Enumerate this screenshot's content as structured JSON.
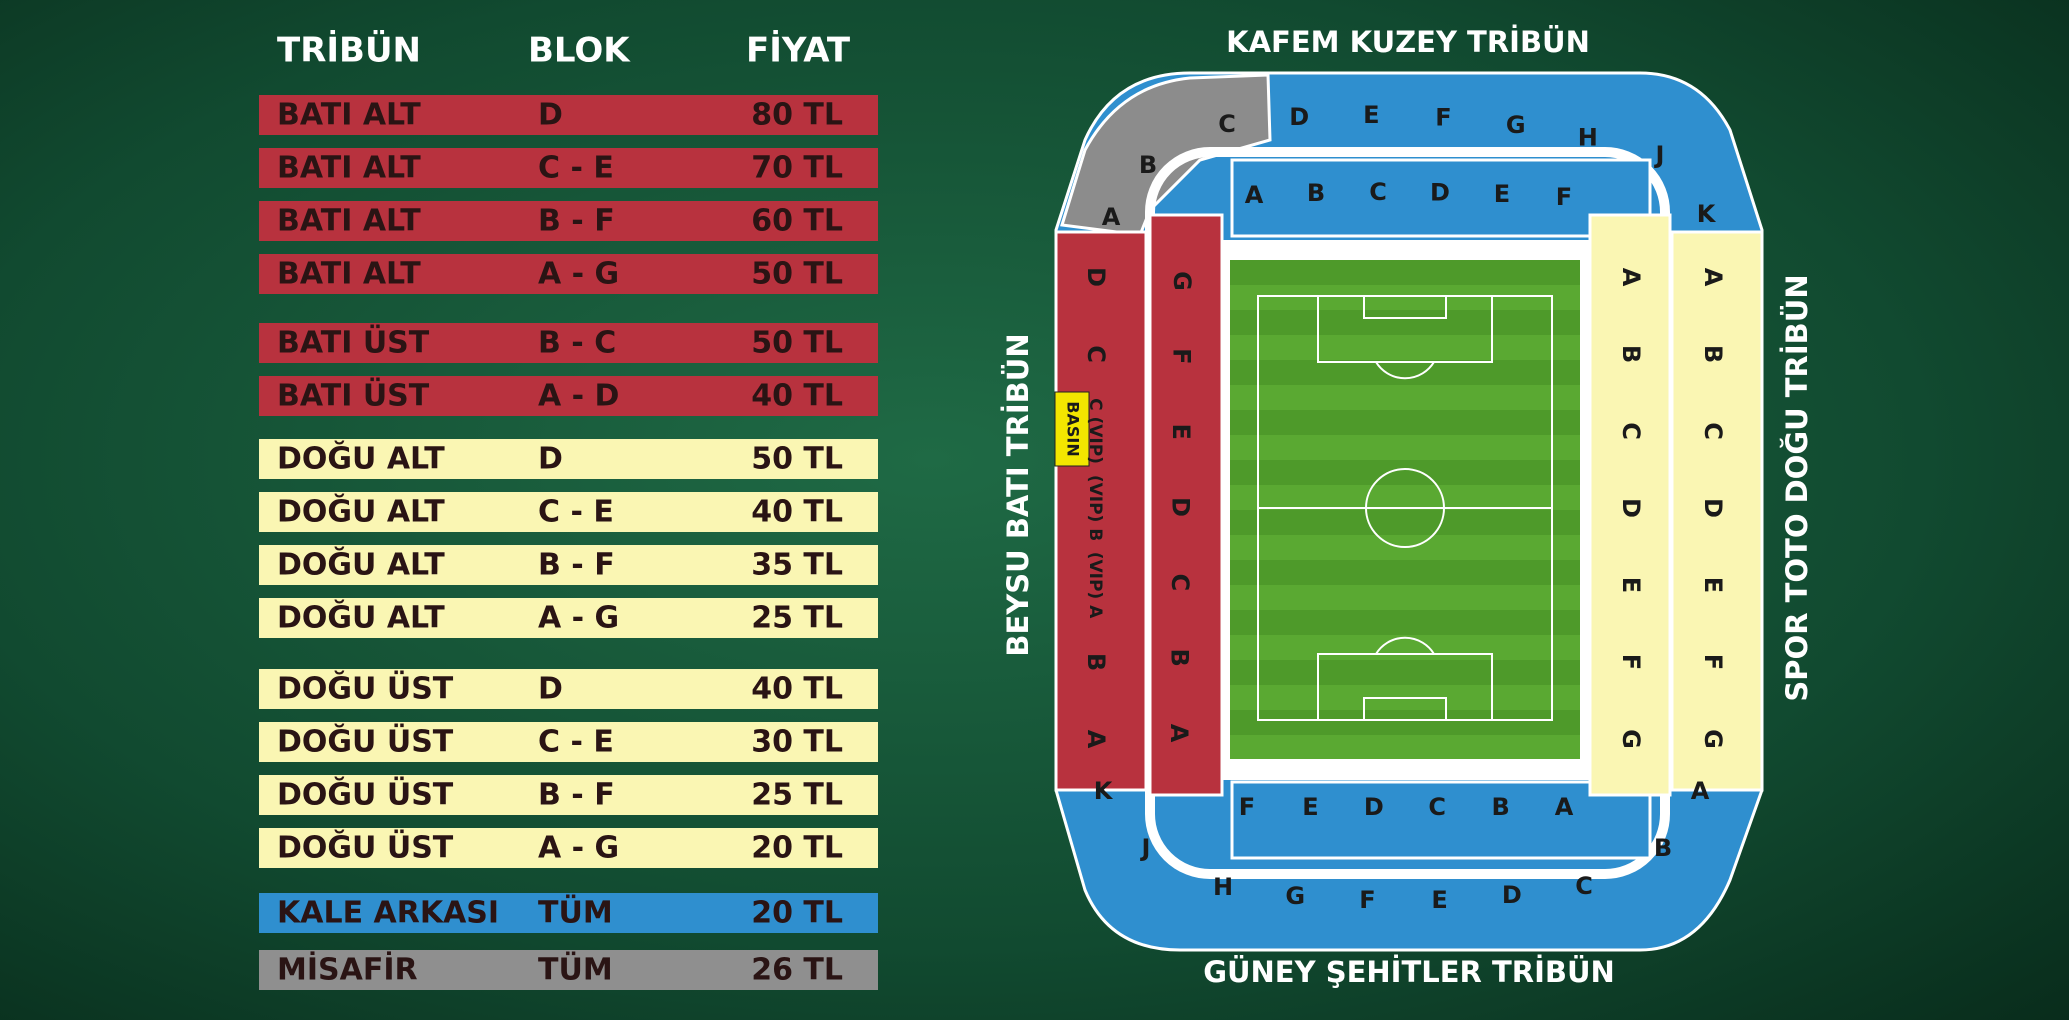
{
  "table": {
    "headers": [
      "TRİBÜN",
      "BLOK",
      "FİYAT"
    ],
    "groups": [
      {
        "rows": [
          [
            "BATI ALT",
            "D",
            "80 TL"
          ],
          [
            "BATI ALT",
            "C - E",
            "70 TL"
          ],
          [
            "BATI ALT",
            "B - F",
            "60 TL"
          ],
          [
            "BATI ALT",
            "A - G",
            "50 TL"
          ]
        ]
      },
      {
        "rows": [
          [
            "BATI ÜST",
            "B - C",
            "50 TL"
          ],
          [
            "BATI ÜST",
            "A - D",
            "40 TL"
          ]
        ]
      },
      {
        "rows": [
          [
            "DOĞU ALT",
            "D",
            "50 TL"
          ],
          [
            "DOĞU ALT",
            "C - E",
            "40 TL"
          ],
          [
            "DOĞU ALT",
            "B - F",
            "35 TL"
          ],
          [
            "DOĞU ALT",
            "A - G",
            "25 TL"
          ]
        ]
      },
      {
        "rows": [
          [
            "DOĞU ÜST",
            "D",
            "40 TL"
          ],
          [
            "DOĞU ÜST",
            "C - E",
            "30 TL"
          ],
          [
            "DOĞU ÜST",
            "B - F",
            "25 TL"
          ],
          [
            "DOĞU ÜST",
            "A - G",
            "20 TL"
          ]
        ]
      },
      {
        "rows": [
          [
            "KALE ARKASI",
            "TÜM",
            "20 TL"
          ]
        ]
      },
      {
        "rows": [
          [
            "MİSAFİR",
            "TÜM",
            "26 TL"
          ]
        ]
      }
    ]
  },
  "stadium": {
    "stands": {
      "north": "KAFEM KUZEY TRİBÜN",
      "south": "GÜNEY ŞEHİTLER TRİBÜN",
      "west": "BEYSU BATI TRİBÜN",
      "east": "SPOR TOTO DOĞU TRİBÜN"
    },
    "press": "BASIN",
    "blocks": {
      "north_upper": [
        "C",
        "D",
        "E",
        "F",
        "G",
        "H",
        "J"
      ],
      "nw_corner": [
        "B",
        "A"
      ],
      "ne_corner": [
        "K"
      ],
      "north_lower": [
        "A",
        "B",
        "C",
        "D",
        "E",
        "F"
      ],
      "west_outer": [
        "D",
        "C",
        "C (VIP)",
        "(VIP) B",
        "(VIP) A",
        "B",
        "A"
      ],
      "west_inner": [
        "G",
        "F",
        "E",
        "D",
        "C",
        "B",
        "A"
      ],
      "east_inner": [
        "A",
        "B",
        "C",
        "D",
        "E",
        "F",
        "G"
      ],
      "east_outer": [
        "A",
        "B",
        "C",
        "D",
        "E",
        "F",
        "G"
      ],
      "south_lower": [
        "F",
        "E",
        "D",
        "C",
        "B",
        "A"
      ],
      "south_upper": [
        "H",
        "G",
        "F",
        "E",
        "D",
        "C"
      ],
      "sw_corner": [
        "K",
        "J"
      ],
      "se_corner": [
        "A",
        "B"
      ]
    }
  }
}
